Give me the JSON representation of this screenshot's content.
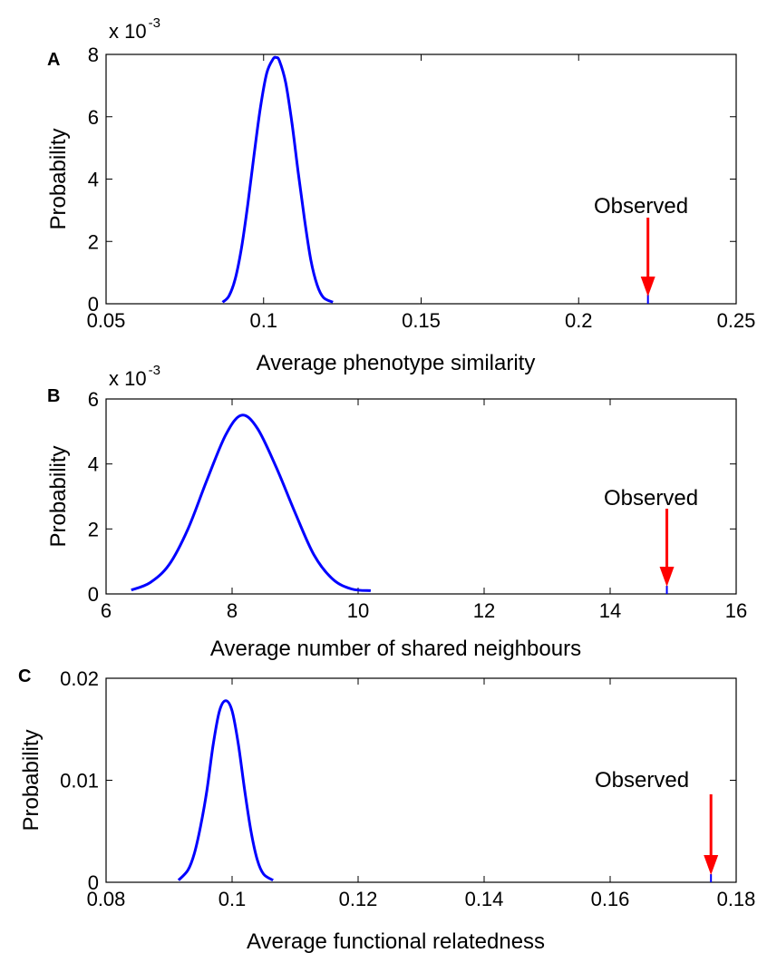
{
  "chart_data": [
    {
      "type": "line",
      "panel_label": "A",
      "xlabel": "Average phenotype similarity",
      "ylabel": "Probability",
      "y_multiplier": {
        "base": "x 10",
        "exponent": "-3"
      },
      "xlim": [
        0.05,
        0.25
      ],
      "ylim": [
        0,
        8
      ],
      "xticks": [
        0.05,
        0.1,
        0.15,
        0.2,
        0.25
      ],
      "xtick_labels": [
        "0.05",
        "0.1",
        "0.15",
        "0.2",
        "0.25"
      ],
      "yticks": [
        0,
        2,
        4,
        6,
        8
      ],
      "ytick_labels": [
        "0",
        "2",
        "4",
        "6",
        "8"
      ],
      "series": [
        {
          "color": "#0000ff",
          "x": [
            0.087,
            0.089,
            0.091,
            0.093,
            0.095,
            0.097,
            0.099,
            0.101,
            0.103,
            0.104,
            0.105,
            0.107,
            0.109,
            0.111,
            0.113,
            0.115,
            0.117,
            0.119,
            0.122
          ],
          "y": [
            0.05,
            0.25,
            0.8,
            1.8,
            3.2,
            4.8,
            6.3,
            7.4,
            7.85,
            7.9,
            7.8,
            7.1,
            5.8,
            4.2,
            2.7,
            1.4,
            0.6,
            0.2,
            0.05
          ]
        }
      ],
      "observed": {
        "x": 0.222,
        "label": "Observed",
        "arrow_color": "#ff0000",
        "line_color": "#0000ff",
        "bar_height": 0.3
      },
      "grid": false
    },
    {
      "type": "line",
      "panel_label": "B",
      "xlabel": "Average number of shared neighbours",
      "ylabel": "Probability",
      "y_multiplier": {
        "base": "x 10",
        "exponent": "-3"
      },
      "xlim": [
        6,
        16
      ],
      "ylim": [
        0,
        6
      ],
      "xticks": [
        6,
        8,
        10,
        12,
        14,
        16
      ],
      "xtick_labels": [
        "6",
        "8",
        "10",
        "12",
        "14",
        "16"
      ],
      "yticks": [
        0,
        2,
        4,
        6
      ],
      "ytick_labels": [
        "0",
        "2",
        "4",
        "6"
      ],
      "series": [
        {
          "color": "#0000ff",
          "x": [
            6.4,
            6.7,
            7.0,
            7.3,
            7.6,
            7.9,
            8.15,
            8.4,
            8.7,
            9.0,
            9.3,
            9.6,
            9.9,
            10.2
          ],
          "y": [
            0.12,
            0.35,
            0.9,
            2.0,
            3.5,
            4.9,
            5.5,
            5.1,
            3.9,
            2.5,
            1.2,
            0.45,
            0.15,
            0.1
          ]
        }
      ],
      "observed": {
        "x": 14.9,
        "label": "Observed",
        "arrow_color": "#ff0000",
        "line_color": "#0000ff",
        "bar_height": 0.25
      },
      "grid": false
    },
    {
      "type": "line",
      "panel_label": "C",
      "xlabel": "Average functional relatedness",
      "ylabel": "Probability",
      "xlim": [
        0.08,
        0.18
      ],
      "ylim": [
        0,
        0.02
      ],
      "xticks": [
        0.08,
        0.1,
        0.12,
        0.14,
        0.16,
        0.18
      ],
      "xtick_labels": [
        "0.08",
        "0.1",
        "0.12",
        "0.14",
        "0.16",
        "0.18"
      ],
      "yticks": [
        0,
        0.01,
        0.02
      ],
      "ytick_labels": [
        "0",
        "0.01",
        "0.02"
      ],
      "series": [
        {
          "color": "#0000ff",
          "x": [
            0.0915,
            0.093,
            0.094,
            0.095,
            0.096,
            0.097,
            0.098,
            0.099,
            0.1,
            0.101,
            0.102,
            0.103,
            0.104,
            0.105,
            0.1065
          ],
          "y": [
            0.0002,
            0.0012,
            0.0028,
            0.0055,
            0.009,
            0.0135,
            0.0168,
            0.0178,
            0.0168,
            0.0135,
            0.009,
            0.005,
            0.0022,
            0.0008,
            0.0002
          ]
        }
      ],
      "observed": {
        "x": 0.176,
        "label": "Observed",
        "arrow_color": "#ff0000",
        "line_color": "#0000ff",
        "bar_height": 0.0008
      },
      "grid": false
    }
  ]
}
